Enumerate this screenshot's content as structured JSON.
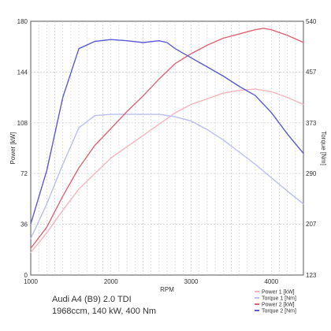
{
  "caption": {
    "model": "Audi A4 (B9) 2.0 TDI",
    "specs": "1968ccm, 140 kW, 400 Nm"
  },
  "chart_data": {
    "type": "line",
    "xlabel": "RPM",
    "ylabel_left": "Power [kW]",
    "ylabel_right": "Torque [Nm]",
    "xlim": [
      1000,
      4400
    ],
    "ylim_left": [
      0,
      180
    ],
    "ylim_right": [
      123,
      540
    ],
    "x_ticks": [
      "1000",
      "2000",
      "3000",
      "4000"
    ],
    "x_tick_values": [
      1000,
      2000,
      3000,
      4000
    ],
    "y_left_ticks": [
      "0",
      "36",
      "72",
      "108",
      "144",
      "180"
    ],
    "y_left_tick_values": [
      0,
      36,
      72,
      108,
      144,
      180
    ],
    "y_right_ticks": [
      "123",
      "207",
      "290",
      "373",
      "457",
      "540"
    ],
    "y_right_tick_values": [
      123,
      207,
      290,
      373,
      457,
      540
    ],
    "grid": true,
    "legend_position": "bottom-right",
    "series": [
      {
        "name": "Power 1 [kW]",
        "axis": "left",
        "color": "#f4b6bd",
        "x": [
          1000,
          1200,
          1400,
          1600,
          1800,
          2000,
          2200,
          2400,
          2600,
          2800,
          3000,
          3200,
          3400,
          3600,
          3800,
          4000,
          4200,
          4400
        ],
        "y": [
          16,
          30,
          46,
          61,
          72,
          83,
          91,
          99,
          107,
          115,
          121,
          125,
          129,
          131,
          132,
          130,
          126,
          121
        ]
      },
      {
        "name": "Torque 1 [Nm]",
        "axis": "right",
        "color": "#b9bff0",
        "x": [
          1000,
          1200,
          1400,
          1600,
          1800,
          2000,
          2200,
          2400,
          2600,
          2800,
          3000,
          3200,
          3400,
          3600,
          3800,
          4000,
          4200,
          4400
        ],
        "y": [
          183,
          240,
          305,
          365,
          385,
          387,
          387,
          387,
          387,
          383,
          376,
          362,
          345,
          325,
          305,
          283,
          261,
          240
        ]
      },
      {
        "name": "Power 2 [kW]",
        "axis": "left",
        "color": "#e06474",
        "x": [
          1000,
          1200,
          1400,
          1600,
          1800,
          2000,
          2200,
          2400,
          2600,
          2800,
          3000,
          3200,
          3400,
          3600,
          3800,
          3900,
          4000,
          4200,
          4400
        ],
        "y": [
          19,
          34,
          56,
          76,
          92,
          104,
          116,
          127,
          139,
          150,
          157,
          163,
          168,
          171,
          174,
          175,
          174,
          170,
          165
        ]
      },
      {
        "name": "Torque 2 [Nm]",
        "axis": "right",
        "color": "#5a5bd6",
        "x": [
          1000,
          1200,
          1400,
          1600,
          1800,
          2000,
          2200,
          2400,
          2600,
          2700,
          2800,
          3000,
          3200,
          3400,
          3600,
          3800,
          4000,
          4200,
          4400
        ],
        "y": [
          207,
          295,
          415,
          495,
          507,
          510,
          508,
          505,
          508,
          505,
          495,
          480,
          465,
          450,
          433,
          418,
          390,
          355,
          323
        ]
      }
    ]
  }
}
